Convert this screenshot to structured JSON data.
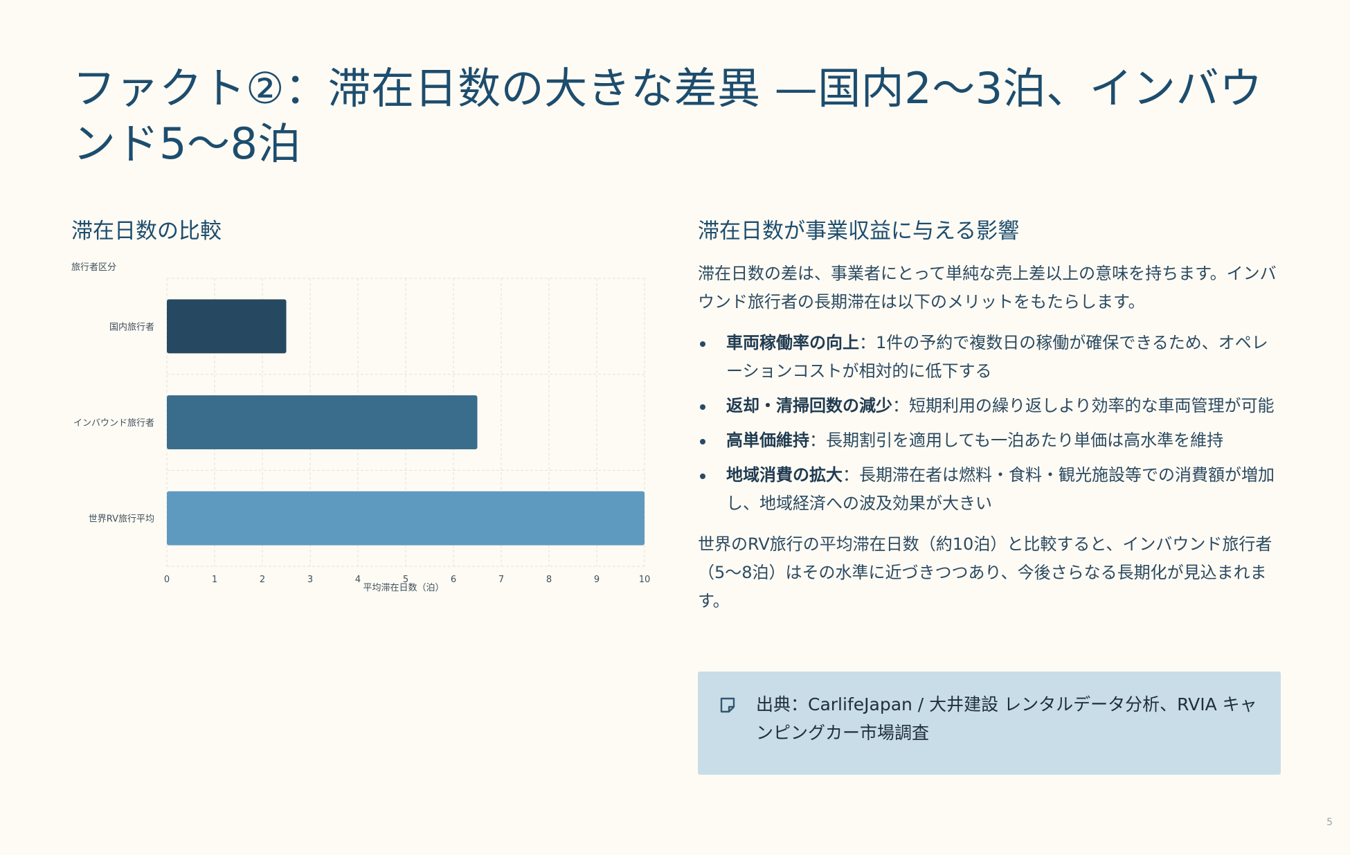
{
  "slide": {
    "title": "ファクト②：滞在日数の大きな差異 —国内2〜3泊、インバウンド5〜8泊",
    "page_number": "5"
  },
  "chart_section": {
    "heading": "滞在日数の比較"
  },
  "chart_data": {
    "type": "bar",
    "orientation": "horizontal",
    "categories": [
      "国内旅行者",
      "インバウンド旅行者",
      "世界RV旅行平均"
    ],
    "values": [
      2.5,
      6.5,
      10
    ],
    "colors": [
      "#264961",
      "#3a6d8c",
      "#5e9abf"
    ],
    "xlabel": "平均滞在日数（泊）",
    "ylabel": "旅行者区分",
    "xlim": [
      0,
      10
    ],
    "xticks": [
      "0",
      "1",
      "2",
      "3",
      "4",
      "5",
      "6",
      "7",
      "8",
      "9",
      "10"
    ],
    "grid": true
  },
  "impact_section": {
    "heading": "滞在日数が事業収益に与える影響",
    "intro": "滞在日数の差は、事業者にとって単純な売上差以上の意味を持ちます。インバウンド旅行者の長期滞在は以下のメリットをもたらします。",
    "bullets": [
      {
        "term": "車両稼働率の向上",
        "text": "：1件の予約で複数日の稼働が確保できるため、オペレーションコストが相対的に低下する"
      },
      {
        "term": "返却・清掃回数の減少",
        "text": "：短期利用の繰り返しより効率的な車両管理が可能"
      },
      {
        "term": "高単価維持",
        "text": "：長期割引を適用しても一泊あたり単価は高水準を維持"
      },
      {
        "term": "地域消費の拡大",
        "text": "：長期滞在者は燃料・食料・観光施設等での消費額が増加し、地域経済への波及効果が大きい"
      }
    ],
    "conclusion": "世界のRV旅行の平均滞在日数（約10泊）と比較すると、インバウンド旅行者（5〜8泊）はその水準に近づきつつあり、今後さらなる長期化が見込まれます。"
  },
  "source": {
    "icon": "note-icon",
    "text": "出典：CarlifeJapan / 大井建設 レンタルデータ分析、RVIA キャンピングカー市場調査"
  }
}
